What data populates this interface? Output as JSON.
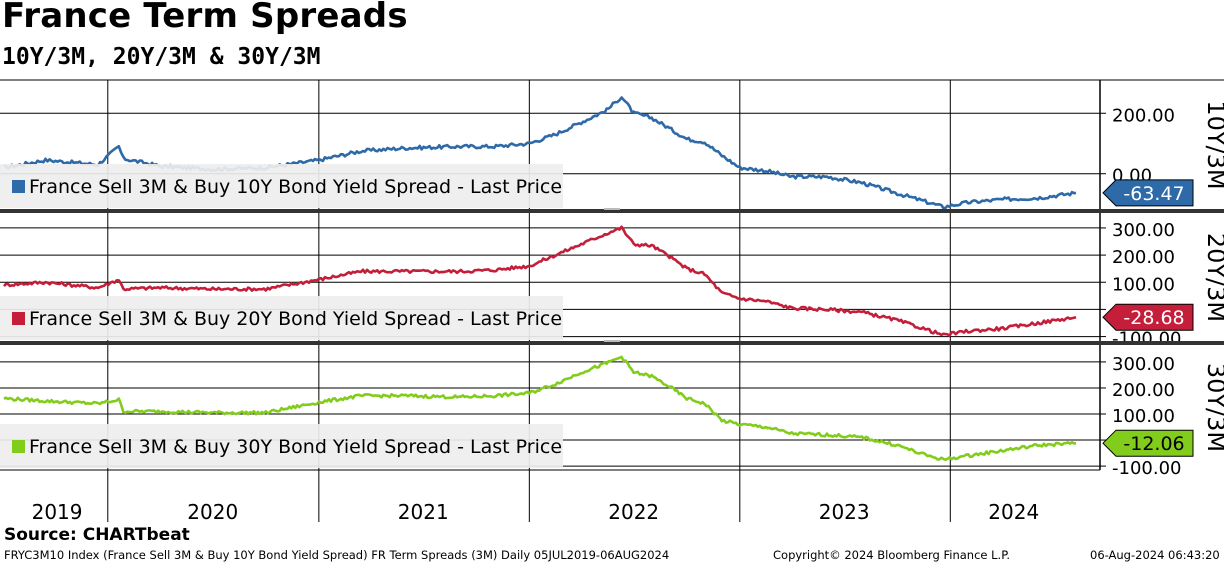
{
  "title": "France Term Spreads",
  "subtitle": "10Y/3M, 20Y/3M & 30Y/3M",
  "source": "Source: CHARTbeat",
  "footer": {
    "left": "FRYC3M10 Index (France Sell 3M & Buy 10Y Bond Yield Spread) FR Term Spreads (3M)  Daily 05JUL2019-06AUG2024",
    "center": "Copyright© 2024 Bloomberg Finance L.P.",
    "right": "06-Aug-2024 06:43:20"
  },
  "colors": {
    "10Y": "#2e6aa8",
    "20Y": "#c41e3a",
    "30Y": "#82cc1c"
  },
  "chart_data": {
    "type": "line",
    "x_tick_labels": [
      "2019",
      "2020",
      "2021",
      "2022",
      "2023",
      "2024"
    ],
    "panels": [
      {
        "series_name": "France Sell 3M & Buy 10Y Bond Yield Spread - Last Price",
        "axis_label": "10Y/3M",
        "last_value": "-63.47",
        "color": "#2e6aa8",
        "y_ticks": [
          "200.00",
          "0.00"
        ],
        "ylim": [
          -120,
          310
        ],
        "x": [
          "2019-07-05",
          "2019-09-15",
          "2019-12-15",
          "2020-01-20",
          "2020-01-28",
          "2020-04-01",
          "2020-07-01",
          "2020-10-01",
          "2021-01-01",
          "2021-03-15",
          "2021-06-01",
          "2021-09-01",
          "2021-11-01",
          "2022-01-01",
          "2022-02-15",
          "2022-04-01",
          "2022-05-15",
          "2022-06-10",
          "2022-07-01",
          "2022-08-01",
          "2022-09-01",
          "2022-10-01",
          "2022-11-01",
          "2022-12-01",
          "2023-01-01",
          "2023-02-15",
          "2023-04-01",
          "2023-06-01",
          "2023-08-01",
          "2023-10-01",
          "2023-11-15",
          "2023-12-20",
          "2024-02-01",
          "2024-04-01",
          "2024-06-01",
          "2024-08-06"
        ],
        "y": [
          20,
          45,
          30,
          90,
          50,
          25,
          15,
          20,
          45,
          75,
          85,
          90,
          90,
          100,
          130,
          170,
          210,
          255,
          200,
          185,
          150,
          115,
          105,
          60,
          20,
          10,
          -10,
          -10,
          -30,
          -65,
          -90,
          -110,
          -95,
          -85,
          -80,
          -63.47
        ]
      },
      {
        "series_name": "France Sell 3M & Buy 20Y Bond Yield Spread - Last Price",
        "axis_label": "20Y/3M",
        "last_value": "-28.68",
        "color": "#c41e3a",
        "y_ticks": [
          "300.00",
          "200.00",
          "100.00",
          "0.00",
          "-100.00"
        ],
        "ylim": [
          -120,
          355
        ],
        "x": [
          "2019-07-05",
          "2019-09-15",
          "2019-12-15",
          "2020-01-20",
          "2020-01-28",
          "2020-04-01",
          "2020-07-01",
          "2020-10-01",
          "2021-01-01",
          "2021-03-15",
          "2021-06-01",
          "2021-09-01",
          "2021-11-01",
          "2022-01-01",
          "2022-02-15",
          "2022-04-01",
          "2022-05-15",
          "2022-06-10",
          "2022-07-01",
          "2022-08-01",
          "2022-09-01",
          "2022-10-01",
          "2022-11-01",
          "2022-12-01",
          "2023-01-01",
          "2023-02-15",
          "2023-04-01",
          "2023-06-01",
          "2023-08-01",
          "2023-10-01",
          "2023-11-15",
          "2023-12-20",
          "2024-02-01",
          "2024-04-01",
          "2024-06-01",
          "2024-08-06"
        ],
        "y": [
          90,
          100,
          80,
          110,
          75,
          80,
          75,
          75,
          110,
          140,
          140,
          140,
          145,
          160,
          200,
          240,
          280,
          300,
          240,
          235,
          195,
          150,
          130,
          60,
          40,
          30,
          5,
          0,
          -10,
          -40,
          -70,
          -95,
          -80,
          -70,
          -50,
          -28.68
        ]
      },
      {
        "series_name": "France Sell 3M & Buy 30Y Bond Yield Spread - Last Price",
        "axis_label": "30Y/3M",
        "last_value": "-12.06",
        "color": "#82cc1c",
        "y_ticks": [
          "300.00",
          "200.00",
          "100.00",
          "0.00",
          "-100.00"
        ],
        "ylim": [
          -115,
          365
        ],
        "x": [
          "2019-07-05",
          "2019-09-15",
          "2019-12-15",
          "2020-01-20",
          "2020-01-28",
          "2020-04-01",
          "2020-07-01",
          "2020-10-01",
          "2021-01-01",
          "2021-03-15",
          "2021-06-01",
          "2021-09-01",
          "2021-11-01",
          "2022-01-01",
          "2022-02-15",
          "2022-04-01",
          "2022-05-15",
          "2022-06-10",
          "2022-07-01",
          "2022-08-01",
          "2022-09-01",
          "2022-10-01",
          "2022-11-01",
          "2022-12-01",
          "2023-01-01",
          "2023-02-15",
          "2023-04-01",
          "2023-06-01",
          "2023-08-01",
          "2023-10-01",
          "2023-11-15",
          "2023-12-20",
          "2024-02-01",
          "2024-04-01",
          "2024-06-01",
          "2024-08-06"
        ],
        "y": [
          160,
          150,
          140,
          155,
          110,
          110,
          105,
          105,
          145,
          170,
          170,
          165,
          170,
          180,
          215,
          260,
          295,
          320,
          260,
          245,
          205,
          160,
          140,
          75,
          60,
          50,
          25,
          20,
          10,
          -20,
          -55,
          -75,
          -60,
          -40,
          -20,
          -12.06
        ]
      }
    ]
  }
}
